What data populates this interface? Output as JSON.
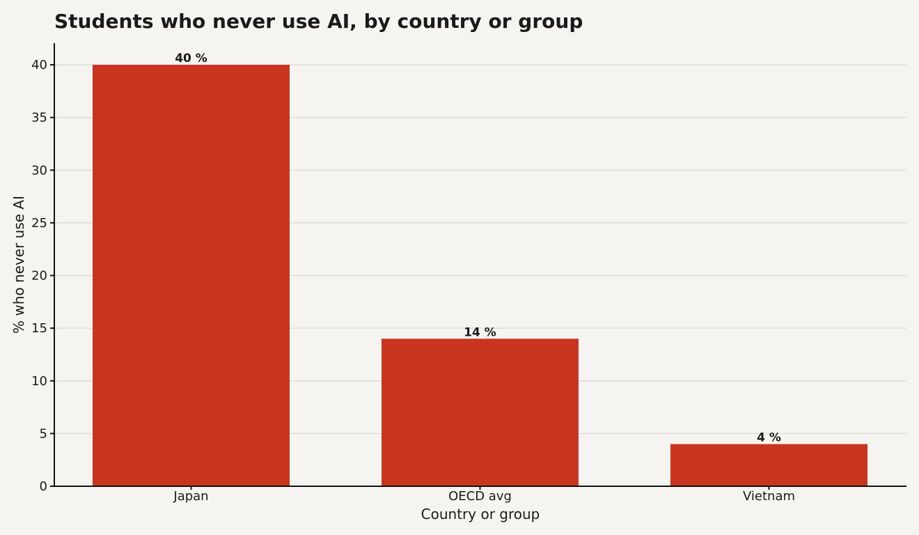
{
  "chart_data": {
    "type": "bar",
    "title": "Students who never use AI, by country or group",
    "xlabel": "Country or group",
    "ylabel": "% who never use AI",
    "categories": [
      "Japan",
      "OECD avg",
      "Vietnam"
    ],
    "values": [
      40,
      14,
      4
    ],
    "data_labels": [
      "40 %",
      "14 %",
      "4 %"
    ],
    "ylim": [
      0,
      42
    ],
    "yticks": [
      0,
      5,
      10,
      15,
      20,
      25,
      30,
      35,
      40
    ],
    "grid": true,
    "bar_color": "#c9341f",
    "background_color": "#f5f4f0"
  }
}
